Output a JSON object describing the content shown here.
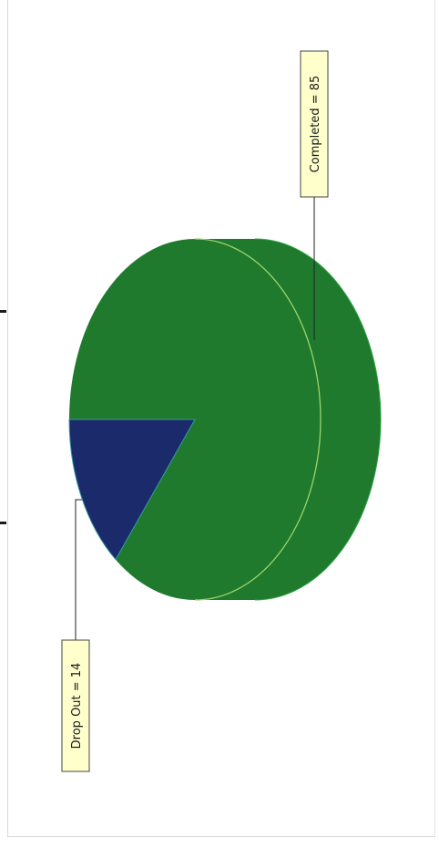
{
  "chart_data": {
    "type": "pie",
    "style": "3d",
    "orientation": "rotated-90-clockwise",
    "categories": [
      "Completed",
      "Drop Out"
    ],
    "values": [
      85,
      14
    ],
    "labels": [
      "Completed = 85",
      "Drop Out = 14"
    ],
    "title": "",
    "legend": "none",
    "colors": {
      "Completed": "#1f7a2e",
      "Drop Out": "#1b2a6b",
      "label_background": "#ffffcc"
    }
  }
}
